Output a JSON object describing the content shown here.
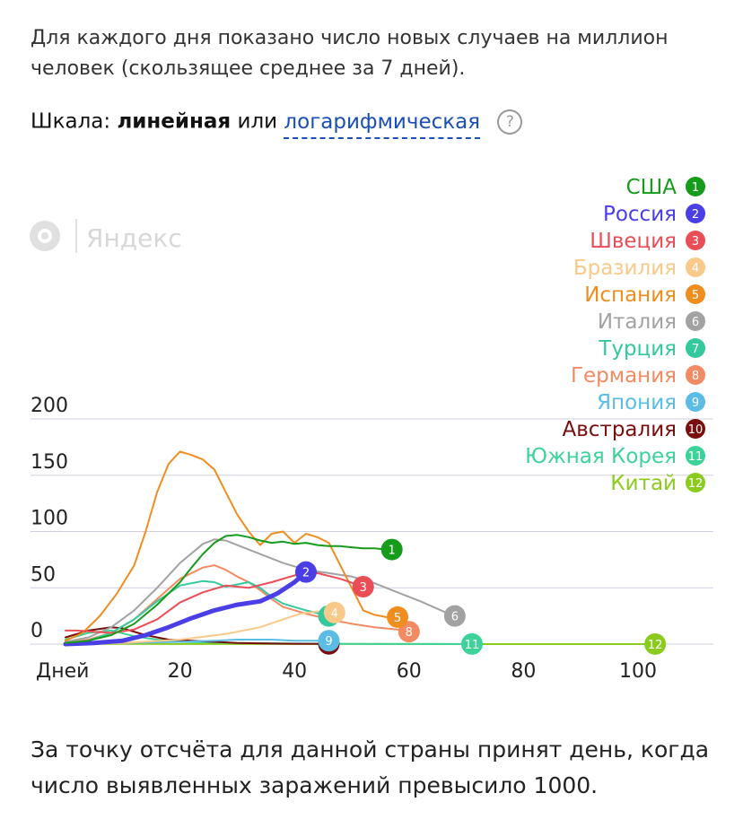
{
  "intro": "Для каждого дня показано число новых случаев на миллион человек (скользящее среднее за 7 дней).",
  "scale": {
    "prefix": "Шкала:",
    "active": "линейная",
    "or": "или",
    "alternative": "логарифмическая",
    "help_glyph": "?"
  },
  "watermark": "Яндекс",
  "footer": "За точку отсчёта для данной страны принят день, когда число выявленных заражений превысило 1000.",
  "chart_data": {
    "type": "line",
    "xlabel": "Дней",
    "xlim": [
      0,
      115
    ],
    "ylim": [
      0,
      200
    ],
    "x_ticks": [
      20,
      40,
      60,
      80,
      100
    ],
    "x_tick_labels": [
      "20",
      "40",
      "60",
      "80",
      "100"
    ],
    "y_ticks": [
      0,
      50,
      100,
      150,
      200
    ],
    "y_tick_labels": [
      "0",
      "50",
      "100",
      "150",
      "200"
    ],
    "grid": true,
    "legend_position": "top-right",
    "series": [
      {
        "rank": "1",
        "name": "США",
        "color": "#169b1b",
        "x": [
          0,
          4,
          8,
          12,
          16,
          20,
          22,
          24,
          26,
          28,
          30,
          32,
          34,
          36,
          38,
          40,
          42,
          44,
          46,
          48,
          50,
          52,
          54,
          56,
          57
        ],
        "y": [
          1,
          3,
          8,
          18,
          35,
          55,
          68,
          80,
          90,
          96,
          97,
          95,
          92,
          90,
          91,
          89,
          90,
          88,
          87,
          87,
          86,
          85,
          85,
          84,
          84
        ]
      },
      {
        "rank": "2",
        "name": "Россия",
        "color": "#4a3ee6",
        "x": [
          0,
          5,
          10,
          14,
          18,
          22,
          26,
          30,
          34,
          37,
          40,
          42
        ],
        "y": [
          0,
          1,
          3,
          8,
          15,
          23,
          30,
          35,
          38,
          45,
          55,
          64
        ]
      },
      {
        "rank": "3",
        "name": "Швеция",
        "color": "#ea4d56",
        "x": [
          0,
          2,
          5,
          8,
          12,
          16,
          20,
          24,
          28,
          32,
          36,
          40,
          44,
          48,
          52
        ],
        "y": [
          12,
          12,
          11,
          10,
          13,
          22,
          37,
          46,
          52,
          50,
          55,
          61,
          63,
          58,
          51
        ]
      },
      {
        "rank": "4",
        "name": "Бразилия",
        "color": "#f9c98a",
        "x": [
          0,
          10,
          20,
          28,
          34,
          38,
          41,
          44,
          47
        ],
        "y": [
          0,
          1,
          4,
          9,
          15,
          22,
          27,
          29,
          28
        ]
      },
      {
        "rank": "5",
        "name": "Испания",
        "color": "#f08d1f",
        "x": [
          0,
          3,
          6,
          9,
          12,
          14,
          16,
          18,
          20,
          22,
          24,
          26,
          28,
          30,
          32,
          34,
          36,
          38,
          40,
          42,
          44,
          46,
          48,
          50,
          52,
          54,
          56,
          58
        ],
        "y": [
          3,
          10,
          25,
          45,
          70,
          100,
          135,
          160,
          171,
          168,
          164,
          155,
          135,
          115,
          100,
          88,
          98,
          100,
          90,
          98,
          95,
          90,
          70,
          50,
          30,
          26,
          24,
          24
        ]
      },
      {
        "rank": "6",
        "name": "Италия",
        "color": "#a2a2a2",
        "x": [
          0,
          4,
          8,
          12,
          16,
          20,
          24,
          26,
          28,
          30,
          34,
          38,
          42,
          46,
          50,
          54,
          58,
          62,
          66,
          68
        ],
        "y": [
          2,
          6,
          15,
          30,
          50,
          72,
          89,
          93,
          92,
          88,
          80,
          72,
          66,
          63,
          60,
          54,
          46,
          38,
          29,
          25
        ]
      },
      {
        "rank": "7",
        "name": "Турция",
        "color": "#34c99d",
        "x": [
          0,
          4,
          8,
          12,
          16,
          20,
          24,
          26,
          28,
          30,
          32,
          34,
          36,
          38,
          42,
          46
        ],
        "y": [
          1,
          3,
          10,
          22,
          38,
          52,
          56,
          55,
          51,
          53,
          55,
          50,
          42,
          36,
          30,
          25
        ]
      },
      {
        "rank": "8",
        "name": "Германия",
        "color": "#f28a63",
        "x": [
          0,
          4,
          8,
          12,
          16,
          20,
          24,
          26,
          28,
          30,
          32,
          34,
          36,
          38,
          42,
          46,
          50,
          54,
          58,
          60
        ],
        "y": [
          1,
          4,
          10,
          22,
          40,
          58,
          68,
          70,
          66,
          60,
          55,
          48,
          40,
          33,
          27,
          22,
          18,
          15,
          13,
          11
        ]
      },
      {
        "rank": "9",
        "name": "Япония",
        "color": "#5bbde6",
        "x": [
          0,
          10,
          20,
          26,
          30,
          36,
          40,
          46
        ],
        "y": [
          0,
          1,
          2,
          3,
          4,
          4,
          3,
          3
        ]
      },
      {
        "rank": "10",
        "name": "Австралия",
        "color": "#7a0d0d",
        "x": [
          0,
          4,
          8,
          10,
          14,
          18,
          22,
          26,
          30,
          36,
          40,
          46
        ],
        "y": [
          6,
          12,
          15,
          14,
          8,
          4,
          3,
          2,
          1,
          0.5,
          0.3,
          0.2
        ]
      },
      {
        "rank": "11",
        "name": "Южная Корея",
        "color": "#3cd39a",
        "x": [
          0,
          4,
          8,
          12,
          16,
          20,
          30,
          40,
          50,
          60,
          71
        ],
        "y": [
          4,
          10,
          12,
          7,
          4,
          2,
          1,
          0.5,
          0.2,
          0.1,
          0.1
        ]
      },
      {
        "rank": "12",
        "name": "Китай",
        "color": "#8acb1d",
        "x": [
          0,
          10,
          20,
          40,
          60,
          80,
          103
        ],
        "y": [
          0.2,
          0.2,
          0.1,
          0.1,
          0.05,
          0.03,
          0.02
        ]
      }
    ]
  }
}
